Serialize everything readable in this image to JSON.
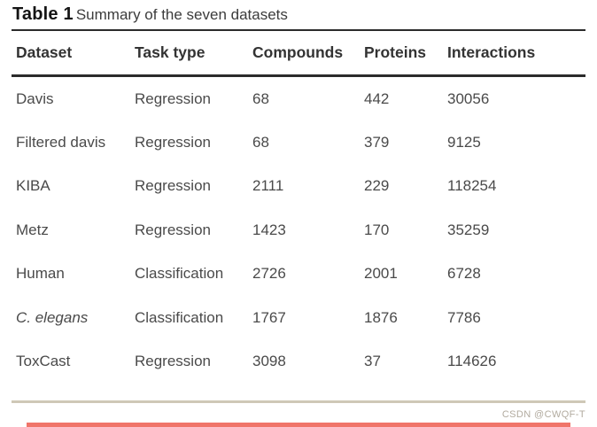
{
  "page": {
    "title_bold": "Table 1",
    "title_rest": "Summary of the seven datasets"
  },
  "table": {
    "columns": [
      "Dataset",
      "Task type",
      "Compounds",
      "Proteins",
      "Interactions"
    ],
    "rows": [
      {
        "dataset": "Davis",
        "task_type": "Regression",
        "compounds": "68",
        "proteins": "442",
        "interactions": "30056"
      },
      {
        "dataset": "Filtered davis",
        "task_type": "Regression",
        "compounds": "68",
        "proteins": "379",
        "interactions": "9125"
      },
      {
        "dataset": "KIBA",
        "task_type": "Regression",
        "compounds": "2111",
        "proteins": "229",
        "interactions": "118254"
      },
      {
        "dataset": "Metz",
        "task_type": "Regression",
        "compounds": "1423",
        "proteins": "170",
        "interactions": "35259"
      },
      {
        "dataset": "Human",
        "task_type": "Classification",
        "compounds": "2726",
        "proteins": "2001",
        "interactions": "6728"
      },
      {
        "dataset": "C. elegans",
        "task_type": "Classification",
        "compounds": "1767",
        "proteins": "1876",
        "interactions": "7786"
      },
      {
        "dataset": "ToxCast",
        "task_type": "Regression",
        "compounds": "3098",
        "proteins": "37",
        "interactions": "114626"
      }
    ]
  },
  "watermark": {
    "text": "CSDN @CWQF-T"
  },
  "colors": {
    "text_title": "#141414",
    "text_header": "#333333",
    "text_body": "#4a4a4a",
    "rule_dark": "#2b2b2b",
    "rule_tan": "#cfc8b7",
    "watermark_text": "#b2ab9f",
    "bottom_bar": "#f0756a"
  }
}
